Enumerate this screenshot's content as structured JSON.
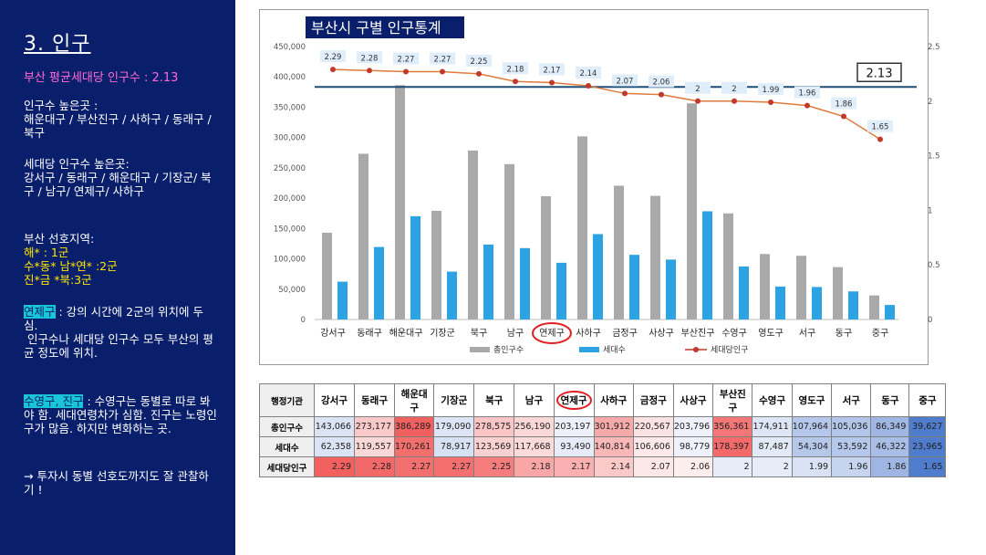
{
  "sidebar": {
    "title": "3. 인구",
    "avg_line": "부산 평균세대당 인구수 : 2.13",
    "high_pop_label": "인구수 높은곳 :",
    "high_pop_list": "해운대구 / 부산진구 / 사하구 / 동래구 / 북구",
    "high_hh_label": "세대당 인구수 높은곳:",
    "high_hh_list": "강서구 / 동래구 / 해운대구 / 기장군/ 북구 / 남구/ 연제구/ 사하구",
    "pref_label": "부산 선호지역:",
    "pref_1": "해* : 1군",
    "pref_2": "수*동* 남*연* :2군",
    "pref_3": "진*금 *북:3군",
    "yeonje_tag": "연제구",
    "yeonje_text": ": 강의 시간에 2군의 위치에 두심.",
    "yeonje_text2": " 인구수나 세대당 인구수 모두 부산의 평균 정도에 위치.",
    "suyeong_tag": "수영구, 진구",
    "suyeong_text": ": 수영구는 동별로 따로 봐야 함. 세대연령차가 심함. 진구는 노령인구가 많음. 하지만 변화하는 곳.",
    "advice": "→ 투자시 동별 선호도까지도 잘 관찰하기 !"
  },
  "chart_data": {
    "type": "bar",
    "title": "부산시 구별 인구통계",
    "categories": [
      "강서구",
      "동래구",
      "해운대구",
      "기장군",
      "북구",
      "남구",
      "연제구",
      "사하구",
      "금정구",
      "사상구",
      "부산진구",
      "수영구",
      "영도구",
      "서구",
      "동구",
      "중구"
    ],
    "series": [
      {
        "name": "총인구수",
        "type": "bar",
        "axis": "left",
        "color": "#a9a9a9",
        "values": [
          143066,
          273177,
          386289,
          179090,
          278575,
          256190,
          203197,
          301912,
          220567,
          203796,
          356361,
          174911,
          107964,
          105036,
          86349,
          39627
        ]
      },
      {
        "name": "세대수",
        "type": "bar",
        "axis": "left",
        "color": "#2ea3e3",
        "values": [
          62358,
          119557,
          170261,
          78917,
          123569,
          117668,
          93490,
          140814,
          106606,
          98779,
          178397,
          87487,
          54304,
          53592,
          46322,
          23965
        ]
      },
      {
        "name": "세대당인구",
        "type": "line",
        "axis": "right",
        "color": "#c0392b",
        "values": [
          2.29,
          2.28,
          2.27,
          2.27,
          2.25,
          2.18,
          2.17,
          2.14,
          2.07,
          2.06,
          2,
          2,
          1.99,
          1.96,
          1.86,
          1.65
        ]
      }
    ],
    "left_axis": {
      "min": 0,
      "max": 450000,
      "ticks": [
        "0",
        "50,000",
        "100,000",
        "150,000",
        "200,000",
        "250,000",
        "300,000",
        "350,000",
        "400,000",
        "450,000"
      ]
    },
    "right_axis": {
      "min": 0,
      "max": 2.5,
      "ticks": [
        "0",
        "0.5",
        "1",
        "1.5",
        "2",
        "2.5"
      ]
    },
    "reference_line": {
      "value": 2.13,
      "label": "2.13",
      "axis": "right"
    },
    "highlighted_category": "연제구",
    "legend_position": "bottom"
  },
  "table": {
    "header_label": "행정기관",
    "columns": [
      "강서구",
      "동래구",
      "해운대구",
      "기장군",
      "북구",
      "남구",
      "연제구",
      "사하구",
      "금정구",
      "사상구",
      "부산진구",
      "수영구",
      "영도구",
      "서구",
      "동구",
      "중구"
    ],
    "rows": [
      {
        "label": "총인구수",
        "values": [
          "143,066",
          "273,177",
          "386,289",
          "179,090",
          "278,575",
          "256,190",
          "203,197",
          "301,912",
          "220,567",
          "203,796",
          "356,361",
          "174,911",
          "107,964",
          "105,036",
          "86,349",
          "39,627"
        ]
      },
      {
        "label": "세대수",
        "values": [
          "62,358",
          "119,557",
          "170,261",
          "78,917",
          "123,569",
          "117,668",
          "93,490",
          "140,814",
          "106,606",
          "98,779",
          "178,397",
          "87,487",
          "54,304",
          "53,592",
          "46,322",
          "23,965"
        ]
      },
      {
        "label": "세대당인구",
        "values": [
          "2.29",
          "2.28",
          "2.27",
          "2.27",
          "2.25",
          "2.18",
          "2.17",
          "2.14",
          "2.07",
          "2.06",
          "2",
          "2",
          "1.99",
          "1.96",
          "1.86",
          "1.65"
        ]
      }
    ],
    "row_colors": [
      [
        "#dbe4f5",
        "#f9c8c8",
        "#f0605e",
        "#dde5f5",
        "#f9c5c5",
        "#fbd8d8",
        "#eef1fa",
        "#f6a9a9",
        "#fbe3e3",
        "#eef1fa",
        "#f27776",
        "#dee6f5",
        "#b5c7ea",
        "#b3c5e9",
        "#a0b7e4",
        "#4f7ccc"
      ],
      [
        "#dbe4f5",
        "#fbd8d8",
        "#f26f6d",
        "#d7e1f4",
        "#fbd0d0",
        "#fbdada",
        "#e7ecf8",
        "#f8b8b8",
        "#fde9e9",
        "#eef1fa",
        "#f26a6a",
        "#e2e9f7",
        "#b6c8ea",
        "#b5c7ea",
        "#a9bee7",
        "#4f7ccc"
      ],
      [
        "#f26160",
        "#f36868",
        "#f47070",
        "#f47070",
        "#f57d7d",
        "#f9a6a6",
        "#fab0b0",
        "#fcc9c9",
        "#fde8e8",
        "#fdeeee",
        "#e6ecf8",
        "#e6ecf8",
        "#d8e2f4",
        "#c6d4ef",
        "#9fb6e4",
        "#4f7ccc"
      ]
    ]
  }
}
